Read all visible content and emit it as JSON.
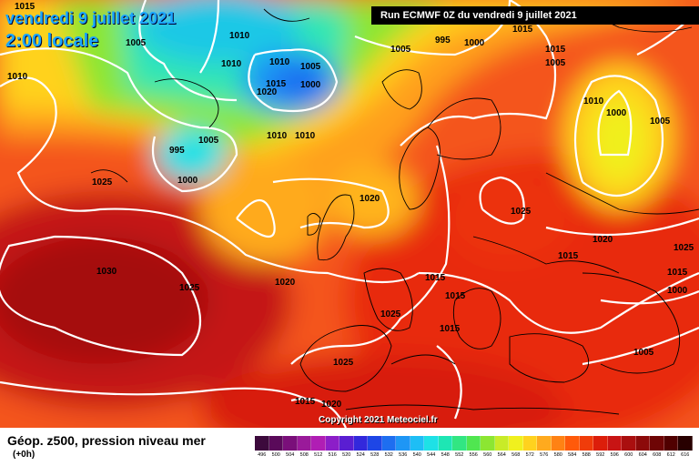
{
  "header": {
    "date": "vendredi 9 juillet 2021",
    "time": "2:00 locale",
    "run": "Run ECMWF 0Z du vendredi 9 juillet 2021"
  },
  "copyright": "Copyright 2021 Meteociel.fr",
  "footer": {
    "title": "Géop. z500, pression niveau mer",
    "subtitle": "(+0h)"
  },
  "legend": {
    "values": [
      "496",
      "500",
      "504",
      "508",
      "512",
      "516",
      "520",
      "524",
      "528",
      "532",
      "536",
      "540",
      "544",
      "548",
      "552",
      "556",
      "560",
      "564",
      "568",
      "572",
      "576",
      "580",
      "584",
      "588",
      "592",
      "596",
      "600",
      "604",
      "608",
      "612",
      "616"
    ],
    "colors": [
      "#3c0a3c",
      "#5a0a5a",
      "#7a0f7a",
      "#9a1a9a",
      "#b01eb4",
      "#8c1ec8",
      "#5a1ed2",
      "#3228dc",
      "#1e46e6",
      "#1e6ef0",
      "#1e96f5",
      "#1ebef5",
      "#1ee1e6",
      "#1ee6b4",
      "#32e682",
      "#50e650",
      "#8ce632",
      "#c8eb28",
      "#f0f01e",
      "#ffd21e",
      "#ffaa1e",
      "#ff8214",
      "#ff5a0a",
      "#f03c0a",
      "#dc1e0a",
      "#c81414",
      "#aa0f0f",
      "#8c0a0a",
      "#6e0505",
      "#500000",
      "#280000"
    ]
  },
  "isobar_labels": [
    "1015",
    "1005",
    "1010",
    "1010",
    "1010",
    "1015",
    "1020",
    "1005",
    "1000",
    "995",
    "1005",
    "1010",
    "1010",
    "1000",
    "1010",
    "995",
    "1000",
    "1005",
    "1015",
    "1015",
    "1005",
    "1010",
    "1000",
    "1005",
    "1025",
    "1020",
    "1025",
    "1020",
    "1030",
    "1025",
    "1020",
    "1015",
    "1015",
    "1025",
    "1015",
    "1015",
    "1025",
    "1015",
    "1000",
    "1005",
    "1015",
    "1020",
    "1025"
  ]
}
